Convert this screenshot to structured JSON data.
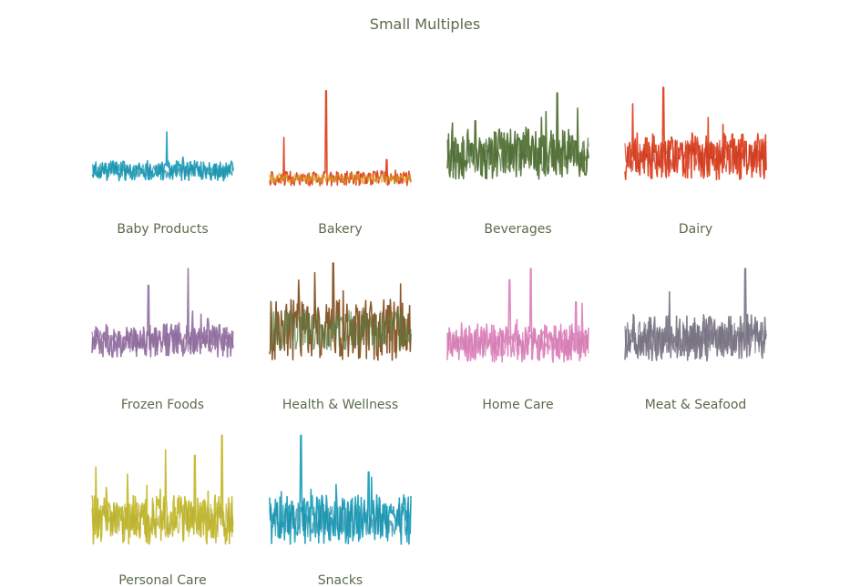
{
  "chart_data": {
    "type": "line",
    "title": "Small Multiples",
    "grid": false,
    "series": [
      {
        "name": "Baby Products",
        "colors": [
          "#2aa4bf",
          "#1f8fa8"
        ],
        "baseline": 0.8,
        "noise": 0.18,
        "spikes": [
          [
            0.53,
            0.55
          ],
          [
            0.71,
            0.25
          ],
          [
            0.85,
            0.18
          ]
        ]
      },
      {
        "name": "Bakery",
        "colors": [
          "#e04c2b",
          "#d6a21f"
        ],
        "baseline": 0.87,
        "noise": 0.13,
        "spikes": [
          [
            0.1,
            0.5
          ],
          [
            0.4,
            0.92
          ],
          [
            0.83,
            0.3
          ]
        ]
      },
      {
        "name": "Beverages",
        "colors": [
          "#5c7a40",
          "#4f6d35"
        ],
        "baseline": 0.65,
        "noise": 0.45,
        "spikes": [
          [
            0.2,
            0.65
          ],
          [
            0.78,
            0.9
          ]
        ]
      },
      {
        "name": "Dairy",
        "colors": [
          "#e04c2b",
          "#c93a20"
        ],
        "baseline": 0.67,
        "noise": 0.42,
        "spikes": [
          [
            0.27,
            0.95
          ],
          [
            0.72,
            0.4
          ]
        ]
      },
      {
        "name": "Frozen Foods",
        "colors": [
          "#9a79a8",
          "#8b6a9b"
        ],
        "baseline": 0.75,
        "noise": 0.3,
        "spikes": [
          [
            0.4,
            0.75
          ],
          [
            0.68,
            0.9
          ],
          [
            0.82,
            0.45
          ]
        ]
      },
      {
        "name": "Health & Wellness",
        "colors": [
          "#8a5a2d",
          "#5c7a40"
        ],
        "baseline": 0.65,
        "noise": 0.55,
        "spikes": [
          [
            0.45,
            0.95
          ],
          [
            0.52,
            0.7
          ],
          [
            0.8,
            0.5
          ]
        ]
      },
      {
        "name": "Home Care",
        "colors": [
          "#e08bc0",
          "#d27ab1"
        ],
        "baseline": 0.77,
        "noise": 0.35,
        "spikes": [
          [
            0.44,
            0.8
          ],
          [
            0.59,
            0.9
          ],
          [
            0.91,
            0.6
          ]
        ]
      },
      {
        "name": "Meat & Seafood",
        "colors": [
          "#84808f",
          "#74707f"
        ],
        "baseline": 0.72,
        "noise": 0.42,
        "spikes": [
          [
            0.85,
            0.9
          ]
        ]
      },
      {
        "name": "Personal Care",
        "colors": [
          "#c8be3a",
          "#b8af30"
        ],
        "baseline": 0.78,
        "noise": 0.45,
        "spikes": [
          [
            0.52,
            0.85
          ],
          [
            0.73,
            0.8
          ],
          [
            0.92,
            0.98
          ]
        ]
      },
      {
        "name": "Snacks",
        "colors": [
          "#2aa4bf",
          "#1f8fa8"
        ],
        "baseline": 0.78,
        "noise": 0.45,
        "spikes": [
          [
            0.22,
            0.98
          ],
          [
            0.7,
            0.65
          ]
        ]
      }
    ]
  }
}
